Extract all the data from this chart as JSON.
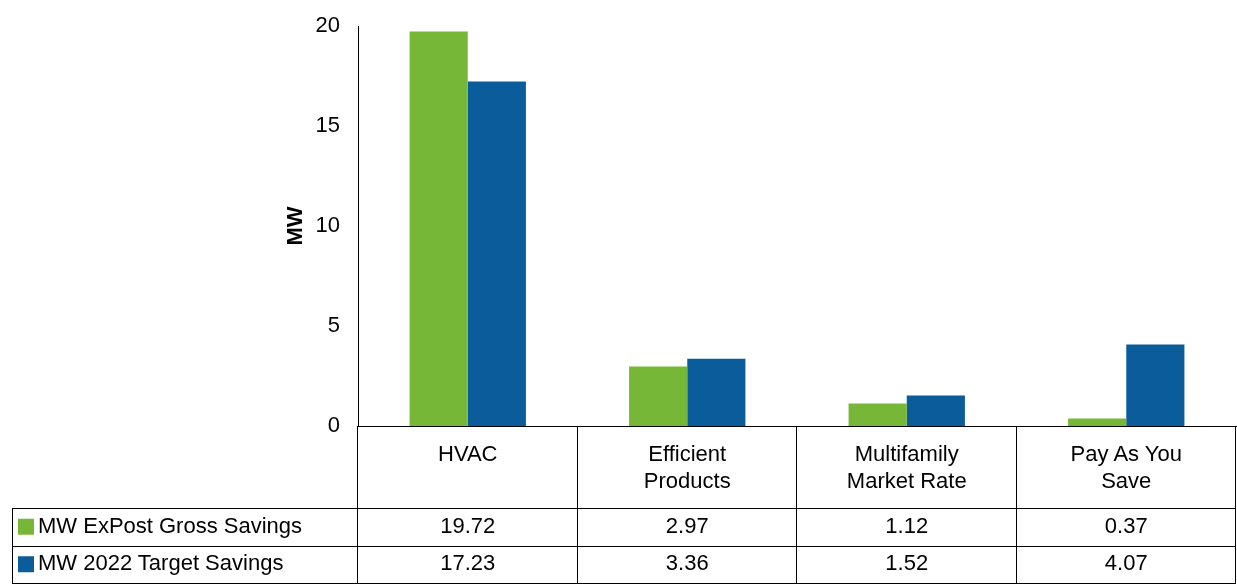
{
  "chart_data": {
    "type": "bar",
    "ylabel": "MW",
    "categories": [
      "HVAC",
      "Efficient Products",
      "Multifamily Market Rate",
      "Pay As You Save"
    ],
    "series": [
      {
        "name": "MW ExPost Gross Savings",
        "color": "#77b737",
        "values": [
          19.72,
          2.97,
          1.12,
          0.37
        ]
      },
      {
        "name": "MW 2022 Target Savings",
        "color": "#0b5c9a",
        "values": [
          17.23,
          3.36,
          1.52,
          4.07
        ]
      }
    ],
    "ylim": [
      0,
      20
    ],
    "yticks": [
      0,
      5,
      10,
      15,
      20
    ],
    "grid": false,
    "legend": "bottom",
    "data_labels": true
  }
}
